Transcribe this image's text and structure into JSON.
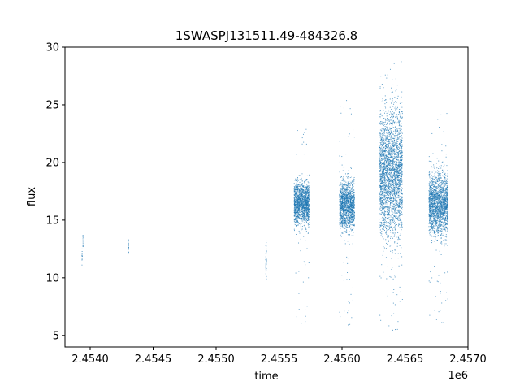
{
  "chart_data": {
    "type": "scatter",
    "title": "1SWASPJ131511.49-484326.8",
    "xlabel": "time",
    "ylabel": "flux",
    "x_offset_label": "1e6",
    "xlim": [
      2453800,
      2457000
    ],
    "ylim": [
      4,
      30
    ],
    "x_ticks": [
      2454000,
      2454500,
      2455000,
      2455500,
      2456000,
      2456500,
      2457000
    ],
    "x_tick_labels": [
      "2.4540",
      "2.4545",
      "2.4550",
      "2.4555",
      "2.4560",
      "2.4565",
      "2.4570"
    ],
    "y_ticks": [
      5,
      10,
      15,
      20,
      25,
      30
    ],
    "y_tick_labels": [
      "5",
      "10",
      "15",
      "20",
      "25",
      "30"
    ],
    "grid": false,
    "marker_color": "#1f77b4",
    "series": [
      {
        "clusters": [
          {
            "x_range": [
              2453935,
              2453937
            ],
            "y_mean": 11.8,
            "y_sd": 0.5,
            "y_min": 10.6,
            "y_max": 12.6,
            "n": 12
          },
          {
            "x_range": [
              2453942,
              2453944
            ],
            "y_mean": 13.3,
            "y_sd": 0.3,
            "y_min": 12.7,
            "y_max": 14.0,
            "n": 10
          },
          {
            "x_range": [
              2454300,
              2454306
            ],
            "y_mean": 12.7,
            "y_sd": 0.35,
            "y_min": 12.0,
            "y_max": 13.3,
            "n": 30
          },
          {
            "x_range": [
              2455395,
              2455400
            ],
            "y_mean": 11.5,
            "y_sd": 0.8,
            "y_min": 9.9,
            "y_max": 13.3,
            "n": 50
          },
          {
            "x_range": [
              2455620,
              2455740
            ],
            "y_mean": 16.4,
            "y_sd": 0.9,
            "y_min": 6.0,
            "y_max": 23.3,
            "n": 1400
          },
          {
            "x_range": [
              2455980,
              2456100
            ],
            "y_mean": 16.3,
            "y_sd": 1.0,
            "y_min": 5.6,
            "y_max": 26.0,
            "n": 1400
          },
          {
            "x_range": [
              2456300,
              2456480
            ],
            "y_mean": 19.0,
            "y_sd": 2.6,
            "y_min": 5.1,
            "y_max": 28.8,
            "n": 2600
          },
          {
            "x_range": [
              2456690,
              2456840
            ],
            "y_mean": 16.4,
            "y_sd": 1.3,
            "y_min": 5.8,
            "y_max": 24.3,
            "n": 1800
          }
        ]
      }
    ]
  }
}
